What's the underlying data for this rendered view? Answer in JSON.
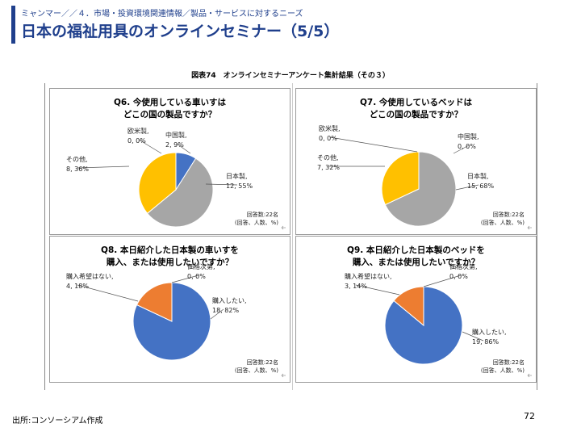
{
  "header": {
    "breadcrumb": "ミャンマー／／４．市場・投資環境関連情報／製品・サービスに対するニーズ",
    "title": "日本の福祉用具のオンラインセミナー（5/5）"
  },
  "figure": {
    "title": "図表74　オンラインセミナーアンケート集計結果（その３）"
  },
  "footer": {
    "source": "出所:コンソーシアム作成",
    "page_number": "72"
  },
  "colors": {
    "accent": "#1f3f8c",
    "japanese": "#a6a6a6",
    "china": "#4472c4",
    "western": "#ed7d31",
    "other": "#ffc000",
    "buy": "#4472c4",
    "no_buy": "#ed7d31",
    "price": "#a6a6a6"
  },
  "chart_data": [
    {
      "type": "pie",
      "title": [
        "Q6. 今使用している車いすは",
        "どこの国の製品ですか？"
      ],
      "slices": [
        {
          "label": [
            "中国製,",
            "2, 9%"
          ],
          "value": 9,
          "color": "#4472c4"
        },
        {
          "label": [
            "日本製,",
            "12, 55%"
          ],
          "value": 55,
          "color": "#a6a6a6"
        },
        {
          "label": [
            "その他,",
            "8, 36%"
          ],
          "value": 36,
          "color": "#ffc000"
        },
        {
          "label": [
            "欧米製,",
            "0, 0%"
          ],
          "value": 0,
          "color": "#ed7d31"
        }
      ],
      "note": [
        "回答数:22名",
        "(回答、人数、%)"
      ]
    },
    {
      "type": "pie",
      "title": [
        "Q7. 今使用しているベッドは",
        "どこの国の製品ですか？"
      ],
      "slices": [
        {
          "label": [
            "中国製,",
            "0, 0%"
          ],
          "value": 0,
          "color": "#4472c4"
        },
        {
          "label": [
            "日本製,",
            "15, 68%"
          ],
          "value": 68,
          "color": "#a6a6a6"
        },
        {
          "label": [
            "その他,",
            "7, 32%"
          ],
          "value": 32,
          "color": "#ffc000"
        },
        {
          "label": [
            "欧米製,",
            "0, 0%"
          ],
          "value": 0,
          "color": "#ed7d31"
        }
      ],
      "note": [
        "回答数:22名",
        "(回答、人数、%)"
      ]
    },
    {
      "type": "pie",
      "title": [
        "Q8. 本日紹介した日本製の車いすを",
        "購入、または使用したいですか？"
      ],
      "slices": [
        {
          "label": [
            "購入したい,",
            "18, 82%"
          ],
          "value": 82,
          "color": "#4472c4"
        },
        {
          "label": [
            "購入希望はない,",
            "4, 18%"
          ],
          "value": 18,
          "color": "#ed7d31"
        },
        {
          "label": [
            "価格次第,",
            "0, 0%"
          ],
          "value": 0,
          "color": "#a6a6a6"
        }
      ],
      "note": [
        "回答数:22名",
        "(回答、人数、%)"
      ]
    },
    {
      "type": "pie",
      "title": [
        "Q9. 本日紹介した日本製のベッドを",
        "購入、または使用したいですか？"
      ],
      "slices": [
        {
          "label": [
            "購入したい,",
            "19, 86%"
          ],
          "value": 86,
          "color": "#4472c4"
        },
        {
          "label": [
            "購入希望はない,",
            "3, 14%"
          ],
          "value": 14,
          "color": "#ed7d31"
        },
        {
          "label": [
            "価格次第,",
            "0, 0%"
          ],
          "value": 0,
          "color": "#a6a6a6"
        }
      ],
      "note": [
        "回答数:22名",
        "(回答、人数、%)"
      ]
    }
  ]
}
